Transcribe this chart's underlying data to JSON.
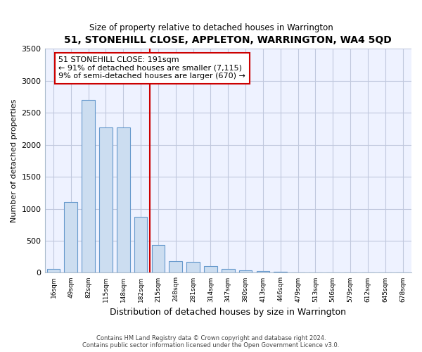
{
  "title": "51, STONEHILL CLOSE, APPLETON, WARRINGTON, WA4 5QD",
  "subtitle": "Size of property relative to detached houses in Warrington",
  "xlabel": "Distribution of detached houses by size in Warrington",
  "ylabel": "Number of detached properties",
  "bar_color": "#ccddf0",
  "bar_edge_color": "#6699cc",
  "vline_color": "#cc0000",
  "vline_x_index": 5,
  "annotation_text": "51 STONEHILL CLOSE: 191sqm\n← 91% of detached houses are smaller (7,115)\n9% of semi-detached houses are larger (670) →",
  "annotation_box_color": "#ffffff",
  "annotation_box_edge_color": "#cc0000",
  "categories": [
    "16sqm",
    "49sqm",
    "82sqm",
    "115sqm",
    "148sqm",
    "182sqm",
    "215sqm",
    "248sqm",
    "281sqm",
    "314sqm",
    "347sqm",
    "380sqm",
    "413sqm",
    "446sqm",
    "479sqm",
    "513sqm",
    "546sqm",
    "579sqm",
    "612sqm",
    "645sqm",
    "678sqm"
  ],
  "values": [
    55,
    1100,
    2700,
    2270,
    2270,
    870,
    430,
    180,
    170,
    100,
    55,
    40,
    25,
    20,
    10,
    0,
    0,
    0,
    0,
    0,
    0
  ],
  "ylim": [
    0,
    3500
  ],
  "yticks": [
    0,
    500,
    1000,
    1500,
    2000,
    2500,
    3000,
    3500
  ],
  "footer": "Contains HM Land Registry data © Crown copyright and database right 2024.\nContains public sector information licensed under the Open Government Licence v3.0.",
  "background_color": "#ffffff",
  "plot_bg_color": "#eef2ff",
  "grid_color": "#c0c8dd"
}
